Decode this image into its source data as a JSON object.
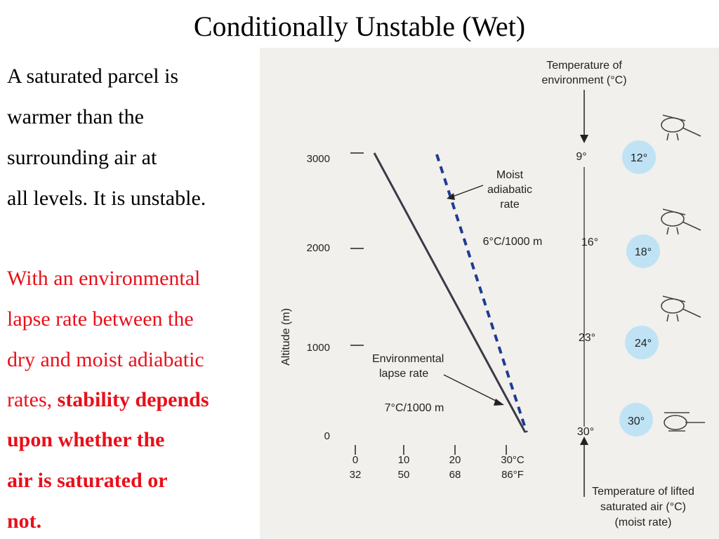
{
  "slide": {
    "title": "Conditionally Unstable (Wet)",
    "para1": [
      "A saturated parcel is",
      "warmer than the",
      "surrounding air at",
      "all levels.  It is unstable."
    ],
    "para2": {
      "line1": "With an environmental",
      "line2": "lapse rate between the",
      "line3": "dry and moist adiabatic",
      "line4_plain": "rates, ",
      "line4_bold": "stability depends",
      "line5": "upon whether the",
      "line6": "air is saturated or",
      "line7": "not."
    }
  },
  "figure": {
    "colors": {
      "dashed_line": "#1f3c93",
      "solid_line": "#3a3a48",
      "bubble": "#bfe3f5",
      "background": "#f2f0ec"
    },
    "top_label": [
      "Temperature of",
      "environment (°C)"
    ],
    "bottom_label": [
      "Temperature of lifted",
      "saturated air (°C)",
      "(moist rate)"
    ],
    "y_axis_label": "Altitude (m)",
    "y_ticks": [
      "3000",
      "2000",
      "1000",
      "0"
    ],
    "x_ticks_c": [
      "0",
      "10",
      "20",
      "30°C"
    ],
    "x_ticks_f": [
      "32",
      "50",
      "68",
      "86°F"
    ],
    "moist_label": [
      "Moist",
      "adiabatic",
      "rate"
    ],
    "moist_rate": "6°C/1000 m",
    "env_label": [
      "Environmental",
      "lapse rate"
    ],
    "env_rate": "7°C/1000 m",
    "env_temps": [
      "9°",
      "16°",
      "23°",
      "30°"
    ],
    "parcel_temps": [
      "12°",
      "18°",
      "24°",
      "30°"
    ]
  }
}
